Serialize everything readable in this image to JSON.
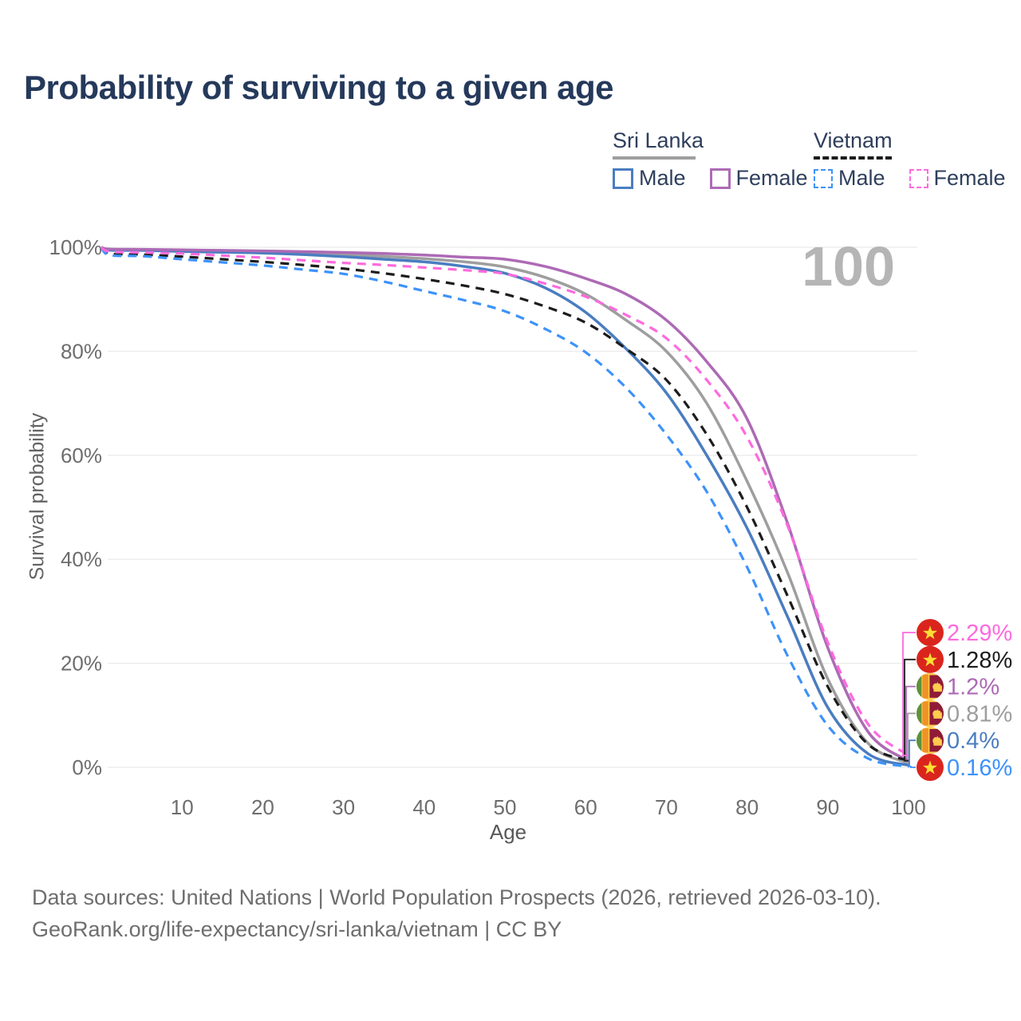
{
  "header": {
    "title": "Probability of surviving to a given age"
  },
  "legend": {
    "groups": [
      {
        "name": "Sri Lanka",
        "line_style": "solid",
        "line_color": "#9e9e9e",
        "items": [
          {
            "label": "Male",
            "color": "#4a7dc0"
          },
          {
            "label": "Female",
            "color": "#ad6ab5"
          }
        ]
      },
      {
        "name": "Vietnam",
        "line_style": "dashed",
        "line_color": "#1c1c1c",
        "items": [
          {
            "label": "Male",
            "color": "#3d92fa"
          },
          {
            "label": "Female",
            "color": "#fd6ade"
          }
        ]
      }
    ]
  },
  "watermark": {
    "text": "100"
  },
  "chart_data": {
    "type": "line",
    "title": "Probability of surviving to a given age",
    "xlabel": "Age",
    "ylabel": "Survival probability",
    "xlim": [
      0,
      100
    ],
    "ylim": [
      0,
      100
    ],
    "grid": "horizontal",
    "legend_position": "top-right",
    "x_ticks": [
      10,
      20,
      30,
      40,
      50,
      60,
      70,
      80,
      90,
      100
    ],
    "y_tick_values": [
      0,
      20,
      40,
      60,
      80,
      100
    ],
    "y_tick_labels": [
      "0%",
      "20%",
      "40%",
      "60%",
      "80%",
      "100%"
    ],
    "x": [
      0,
      1,
      5,
      10,
      15,
      20,
      25,
      30,
      35,
      40,
      45,
      50,
      55,
      60,
      65,
      70,
      75,
      80,
      85,
      90,
      95,
      100
    ],
    "series": [
      {
        "id": "sri-lanka-both",
        "name": "Sri Lanka Both sexes",
        "color": "#9e9e9e",
        "dashed": false,
        "flag": "sri-lanka",
        "end_label": "0.81%",
        "label_order": 3,
        "values": [
          100,
          99.55,
          99.5,
          99.35,
          99.2,
          99.1,
          98.9,
          98.6,
          98.25,
          97.8,
          97.2,
          96.2,
          94.2,
          91.0,
          86.0,
          80.0,
          70.0,
          55.0,
          37.5,
          17.0,
          4.6,
          0.81
        ]
      },
      {
        "id": "sri-lanka-male",
        "name": "Sri Lanka Male",
        "color": "#4a7dc0",
        "dashed": false,
        "flag": "sri-lanka",
        "end_label": "0.4%",
        "label_order": 4,
        "values": [
          100,
          99.45,
          99.4,
          99.2,
          99.05,
          98.9,
          98.6,
          98.2,
          97.7,
          97.2,
          96.3,
          95.0,
          92.2,
          87.5,
          80.5,
          72.0,
          60.0,
          46.0,
          29.0,
          11.5,
          2.6,
          0.4
        ]
      },
      {
        "id": "sri-lanka-female",
        "name": "Sri Lanka Female",
        "color": "#ad6ab5",
        "dashed": false,
        "flag": "sri-lanka",
        "end_label": "1.2%",
        "label_order": 2,
        "values": [
          100,
          99.65,
          99.6,
          99.5,
          99.4,
          99.3,
          99.15,
          99.0,
          98.8,
          98.5,
          98.1,
          97.7,
          96.3,
          94.0,
          91.0,
          86.0,
          78.0,
          67.0,
          47.0,
          23.0,
          6.8,
          1.2
        ]
      },
      {
        "id": "vietnam-both",
        "name": "Vietnam Both sexes",
        "color": "#1c1c1c",
        "dashed": true,
        "flag": "vietnam",
        "end_label": "1.28%",
        "label_order": 1,
        "values": [
          100,
          98.8,
          98.6,
          98.2,
          97.7,
          97.2,
          96.6,
          95.9,
          95.0,
          93.9,
          92.6,
          91.0,
          88.6,
          85.5,
          80.5,
          74.5,
          64.0,
          50.0,
          33.0,
          15.5,
          4.4,
          1.28
        ]
      },
      {
        "id": "vietnam-male",
        "name": "Vietnam Male",
        "color": "#3d92fa",
        "dashed": true,
        "flag": "vietnam",
        "end_label": "0.16%",
        "label_order": 5,
        "values": [
          100,
          98.5,
          98.3,
          97.7,
          97.1,
          96.5,
          95.7,
          94.9,
          93.4,
          91.6,
          89.8,
          87.7,
          84.3,
          79.8,
          73.0,
          64.0,
          53.0,
          38.5,
          21.5,
          8.0,
          1.7,
          0.16
        ]
      },
      {
        "id": "vietnam-female",
        "name": "Vietnam Female",
        "color": "#fd6ade",
        "dashed": true,
        "flag": "vietnam",
        "end_label": "2.29%",
        "label_order": 0,
        "values": [
          100,
          99.15,
          99.0,
          98.8,
          98.4,
          98.0,
          97.5,
          97.0,
          96.6,
          96.1,
          95.6,
          94.9,
          93.0,
          90.5,
          87.0,
          82.5,
          74.5,
          63.5,
          46.5,
          24.0,
          8.3,
          2.29
        ]
      }
    ],
    "flags": {
      "vietnam": {
        "field": "#da251d",
        "star": "#ffde33"
      },
      "sri_lanka": {
        "gold": "#ffcc4d",
        "green": "#5c913b",
        "orange": "#ef9227",
        "maroon": "#8f1b38"
      }
    }
  },
  "footer": {
    "line1": "Data sources: United Nations | World Population Prospects (2026, retrieved 2026-03-10).",
    "line2": "GeoRank.org/life-expectancy/sri-lanka/vietnam | CC BY"
  }
}
